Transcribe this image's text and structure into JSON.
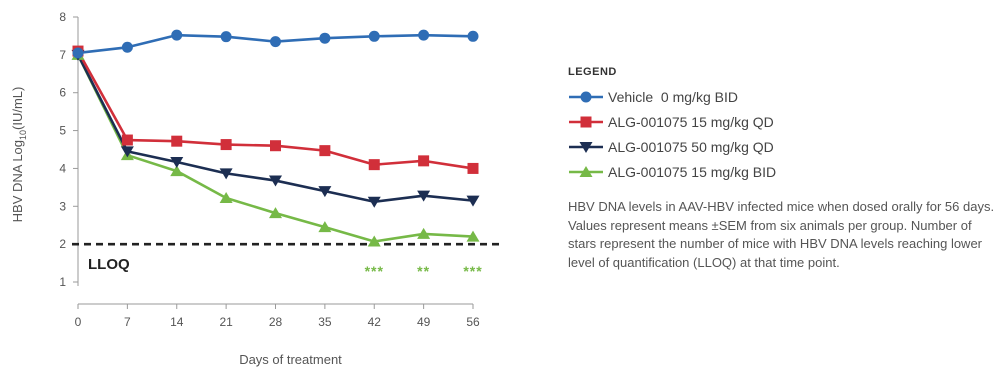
{
  "chart_data": {
    "type": "line",
    "xlabel": "Days of treatment",
    "ylabel_main": "HBV DNA Log",
    "ylabel_sub": "10",
    "ylabel_unit": "(IU/mL)",
    "x": [
      0,
      7,
      14,
      21,
      28,
      35,
      42,
      49,
      56
    ],
    "xlim": [
      0,
      56
    ],
    "ylim": [
      1,
      8
    ],
    "y_ticks": [
      1,
      2,
      3,
      4,
      5,
      6,
      7,
      8
    ],
    "series": [
      {
        "name": "Vehicle  0 mg/kg BID",
        "color": "#2f6db5",
        "marker": "circle",
        "values": [
          7.05,
          7.2,
          7.52,
          7.48,
          7.35,
          7.44,
          7.49,
          7.52,
          7.49
        ]
      },
      {
        "name": "ALG-001075 15 mg/kg QD",
        "color": "#d12f3a",
        "marker": "square",
        "values": [
          7.1,
          4.75,
          4.72,
          4.63,
          4.6,
          4.47,
          4.1,
          4.2,
          4.0
        ]
      },
      {
        "name": "ALG-001075 50 mg/kg QD",
        "color": "#1c2e52",
        "marker": "triangle-down",
        "values": [
          7.0,
          4.45,
          4.17,
          3.87,
          3.68,
          3.4,
          3.12,
          3.28,
          3.15
        ]
      },
      {
        "name": "ALG-001075 15 mg/kg BID",
        "color": "#76b947",
        "marker": "triangle-up",
        "values": [
          7.0,
          4.35,
          3.93,
          3.22,
          2.82,
          2.45,
          2.07,
          2.27,
          2.2
        ]
      }
    ],
    "lloq": {
      "value": 2,
      "label": "LLOQ"
    },
    "stars": [
      {
        "x": 42,
        "text": "***"
      },
      {
        "x": 49,
        "text": "**"
      },
      {
        "x": 56,
        "text": "***"
      }
    ],
    "stars_color": "#76b947",
    "legend_position": "right"
  },
  "legend": {
    "title": "LEGEND"
  },
  "caption": "HBV DNA levels in AAV-HBV infected mice when dosed orally for 56 days. Values represent means ±SEM from six animals per group. Number of stars represent the number of mice with HBV DNA levels reaching lower level of quantification (LLOQ) at that time point."
}
